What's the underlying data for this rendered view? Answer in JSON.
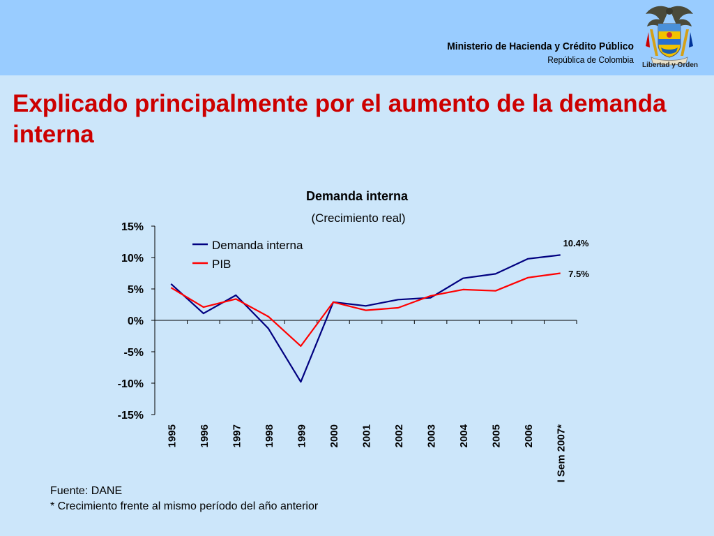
{
  "header": {
    "ministry": "Ministerio de Hacienda y Crédito Público",
    "country": "República de Colombia",
    "motto": "Libertad y Orden"
  },
  "slide": {
    "title": "Explicado principalmente por el aumento de la demanda interna"
  },
  "chart_data": {
    "type": "line",
    "title": "Demanda interna",
    "subtitle": "(Crecimiento real)",
    "categories": [
      "1995",
      "1996",
      "1997",
      "1998",
      "1999",
      "2000",
      "2001",
      "2002",
      "2003",
      "2004",
      "2005",
      "2006",
      "I Sem 2007*"
    ],
    "series": [
      {
        "name": "Demanda interna",
        "color": "#000080",
        "values": [
          5.8,
          1.1,
          4.0,
          -1.3,
          -9.8,
          2.9,
          2.3,
          3.3,
          3.6,
          6.7,
          7.4,
          9.8,
          10.4
        ]
      },
      {
        "name": "PIB",
        "color": "#ff0000",
        "values": [
          5.2,
          2.1,
          3.4,
          0.6,
          -4.1,
          2.9,
          1.6,
          2.0,
          3.9,
          4.9,
          4.7,
          6.8,
          7.5
        ]
      }
    ],
    "end_labels": [
      "10.4%",
      "7.5%"
    ],
    "y_ticks": [
      "15%",
      "10%",
      "5%",
      "0%",
      "-5%",
      "-10%",
      "-15%"
    ],
    "ylim": [
      -15,
      15
    ],
    "legend_position": "top-left",
    "grid": false
  },
  "footnotes": {
    "source": "Fuente: DANE",
    "note": "* Crecimiento frente al mismo período del año anterior"
  }
}
